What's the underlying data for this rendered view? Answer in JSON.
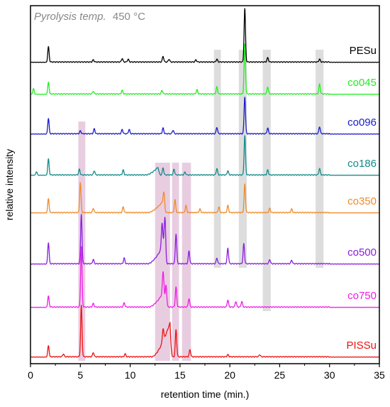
{
  "chart_data": {
    "type": "line",
    "annotation": {
      "label": "Pyrolysis temp.",
      "value": "450 °C"
    },
    "xlabel": "retention time (min.)",
    "ylabel": "relative intensity",
    "xlim": [
      0,
      35
    ],
    "xticks": [
      0,
      5,
      10,
      15,
      20,
      25,
      30,
      35
    ],
    "grid": false,
    "highlight_bands": [
      {
        "x": [
          4.8,
          5.5
        ],
        "series_span": [
          "co096",
          "PISSu"
        ],
        "color": "#e6c8de"
      },
      {
        "x": [
          12.5,
          14.0
        ],
        "series_span": [
          "co186",
          "PISSu"
        ],
        "color": "#e6c8de"
      },
      {
        "x": [
          14.2,
          14.9
        ],
        "series_span": [
          "co186",
          "PISSu"
        ],
        "color": "#e6c8de"
      },
      {
        "x": [
          15.2,
          16.1
        ],
        "series_span": [
          "co186",
          "PISSu"
        ],
        "color": "#e6c8de"
      },
      {
        "x": [
          18.4,
          19.1
        ],
        "series_span": [
          "PESu",
          "co500"
        ],
        "color": "#d9d9d9"
      },
      {
        "x": [
          20.9,
          21.7
        ],
        "series_span": [
          "PESu",
          "co500"
        ],
        "color": "#d9d9d9"
      },
      {
        "x": [
          23.3,
          24.1
        ],
        "series_span": [
          "PESu",
          "co750"
        ],
        "color": "#d9d9d9"
      },
      {
        "x": [
          28.6,
          29.4
        ],
        "series_span": [
          "PESu",
          "co500"
        ],
        "color": "#d9d9d9"
      }
    ],
    "series": [
      {
        "name": "PESu",
        "color": "#000000",
        "peaks": [
          [
            1.8,
            22
          ],
          [
            6.3,
            3
          ],
          [
            9.2,
            5
          ],
          [
            9.8,
            4
          ],
          [
            13.3,
            8
          ],
          [
            13.9,
            4
          ],
          [
            16.6,
            3
          ],
          [
            18.7,
            4
          ],
          [
            21.5,
            75
          ],
          [
            23.8,
            6
          ],
          [
            29.0,
            4
          ]
        ],
        "hump": null
      },
      {
        "name": "co045",
        "color": "#22ee22",
        "peaks": [
          [
            0.3,
            8
          ],
          [
            1.8,
            17
          ],
          [
            6.3,
            4
          ],
          [
            9.2,
            5
          ],
          [
            13.2,
            5
          ],
          [
            16.7,
            6
          ],
          [
            18.7,
            10
          ],
          [
            21.5,
            70
          ],
          [
            23.8,
            10
          ],
          [
            29.0,
            14
          ]
        ],
        "hump": null
      },
      {
        "name": "co096",
        "color": "#1a1acc",
        "peaks": [
          [
            1.8,
            22
          ],
          [
            5.0,
            4
          ],
          [
            6.4,
            7
          ],
          [
            9.2,
            6
          ],
          [
            9.9,
            6
          ],
          [
            13.3,
            8
          ],
          [
            14.3,
            5
          ],
          [
            18.7,
            9
          ],
          [
            21.5,
            52
          ],
          [
            23.8,
            8
          ],
          [
            29.0,
            10
          ]
        ],
        "hump": null
      },
      {
        "name": "co186",
        "color": "#138a8a",
        "peaks": [
          [
            0.6,
            5
          ],
          [
            1.8,
            23
          ],
          [
            4.9,
            8
          ],
          [
            6.4,
            6
          ],
          [
            9.3,
            7
          ],
          [
            13.3,
            10
          ],
          [
            14.4,
            8
          ],
          [
            15.5,
            4
          ],
          [
            18.7,
            9
          ],
          [
            19.8,
            6
          ],
          [
            21.5,
            55
          ],
          [
            23.8,
            7
          ],
          [
            29.0,
            9
          ]
        ],
        "hump": {
          "x0": 11.6,
          "x1": 12.8,
          "h": 11
        }
      },
      {
        "name": "co350",
        "color": "#f08a2a",
        "peaks": [
          [
            1.8,
            20
          ],
          [
            5.0,
            42
          ],
          [
            6.3,
            6
          ],
          [
            9.3,
            8
          ],
          [
            13.4,
            22
          ],
          [
            14.5,
            18
          ],
          [
            15.6,
            10
          ],
          [
            17.0,
            5
          ],
          [
            18.9,
            8
          ],
          [
            19.8,
            10
          ],
          [
            21.5,
            40
          ],
          [
            24.0,
            6
          ],
          [
            26.2,
            5
          ]
        ],
        "hump": {
          "x0": 11.8,
          "x1": 13.3,
          "h": 16
        }
      },
      {
        "name": "co500",
        "color": "#8a1ee0",
        "peaks": [
          [
            1.8,
            30
          ],
          [
            5.1,
            70
          ],
          [
            6.3,
            6
          ],
          [
            9.4,
            8
          ],
          [
            13.2,
            35
          ],
          [
            13.5,
            55
          ],
          [
            14.6,
            42
          ],
          [
            15.9,
            18
          ],
          [
            18.7,
            8
          ],
          [
            19.8,
            22
          ],
          [
            21.4,
            28
          ],
          [
            24.0,
            6
          ],
          [
            26.2,
            5
          ]
        ],
        "hump": {
          "x0": 11.8,
          "x1": 13.4,
          "h": 28
        }
      },
      {
        "name": "co750",
        "color": "#f01ce6",
        "peaks": [
          [
            1.8,
            16
          ],
          [
            5.1,
            85
          ],
          [
            6.3,
            5
          ],
          [
            9.4,
            6
          ],
          [
            13.3,
            30
          ],
          [
            13.6,
            30
          ],
          [
            14.6,
            28
          ],
          [
            15.9,
            12
          ],
          [
            19.8,
            10
          ],
          [
            20.6,
            8
          ],
          [
            21.2,
            8
          ]
        ],
        "hump": {
          "x0": 11.9,
          "x1": 13.4,
          "h": 22
        }
      },
      {
        "name": "PISSu",
        "color": "#ee1111",
        "peaks": [
          [
            1.8,
            16
          ],
          [
            3.3,
            4
          ],
          [
            5.1,
            72
          ],
          [
            6.3,
            6
          ],
          [
            9.5,
            4
          ],
          [
            13.3,
            18
          ],
          [
            14.6,
            38
          ],
          [
            16.0,
            10
          ],
          [
            19.8,
            3
          ],
          [
            23.0,
            3
          ]
        ],
        "hump": {
          "x0": 12.2,
          "x1": 14.0,
          "h": 48
        }
      }
    ]
  }
}
